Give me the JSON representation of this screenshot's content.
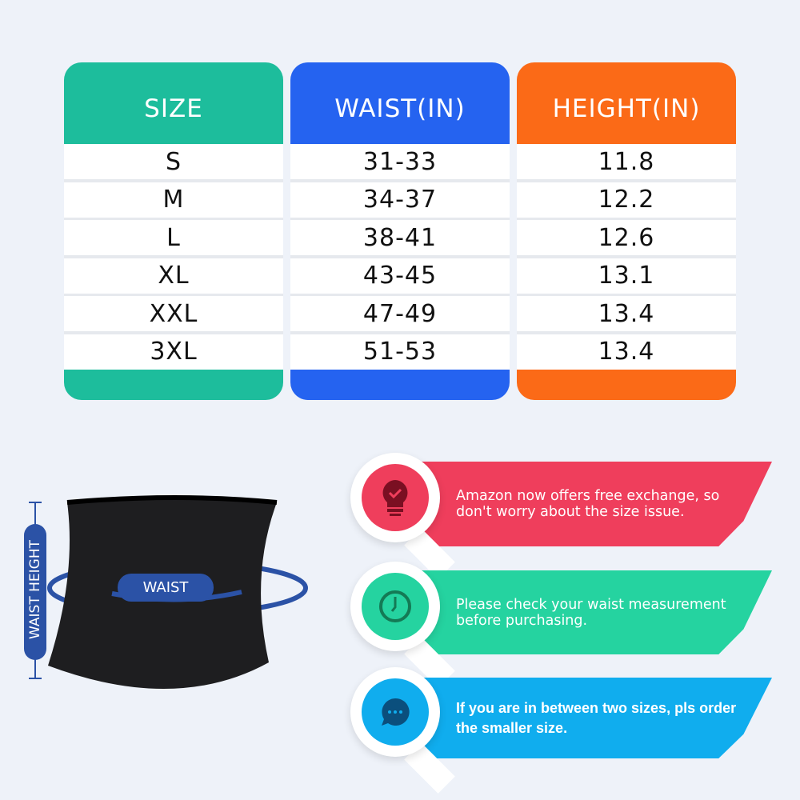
{
  "table": {
    "headers": [
      "SIZE",
      "WAIST(IN)",
      "HEIGHT(IN)"
    ],
    "header_colors": [
      "#1dbd9c",
      "#2563f0",
      "#fb6a17"
    ],
    "rows": [
      [
        "S",
        "31-33",
        "11.8"
      ],
      [
        "M",
        "34-37",
        "12.2"
      ],
      [
        "L",
        "38-41",
        "12.6"
      ],
      [
        "XL",
        "43-45",
        "13.1"
      ],
      [
        "XXL",
        "47-49",
        "13.4"
      ],
      [
        "3XL",
        "51-53",
        "13.4"
      ]
    ]
  },
  "diagram": {
    "waist_label": "WAIST",
    "height_label": "WAIST HEIGHT"
  },
  "tips": [
    {
      "text": "Amazon now offers free exchange, so don't worry about the size issue.",
      "icon": "lightbulb-check-icon",
      "color": "#ef3e5c"
    },
    {
      "text": "Please check your waist measurement before purchasing.",
      "icon": "clock-icon",
      "color": "#25d3a0"
    },
    {
      "text": "If you are in between two sizes, pls order the smaller size.",
      "icon": "chat-bubble-icon",
      "color": "#10adee"
    }
  ]
}
